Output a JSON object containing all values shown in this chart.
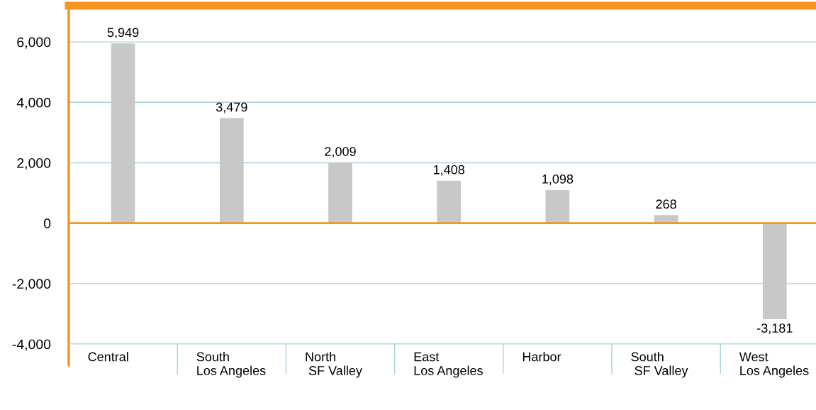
{
  "chart_data": {
    "type": "bar",
    "categories": [
      "Central",
      "South\nLos Angeles",
      "North\n SF Valley",
      "East\nLos Angeles",
      "Harbor",
      "South\n SF Valley",
      "West\nLos Angeles"
    ],
    "values": [
      5949,
      3479,
      2009,
      1408,
      1098,
      268,
      -3181
    ],
    "value_labels": [
      "5,949",
      "3,479",
      "2,009",
      "1,408",
      "1,098",
      "268",
      "-3,181"
    ],
    "color": "#c8c8c8",
    "ylim": [
      -4000,
      7200
    ],
    "yticks": [
      {
        "value": -4000,
        "label": "-4,000"
      },
      {
        "value": -2000,
        "label": "-2,000"
      },
      0,
      {
        "value": 2000,
        "label": "2,000"
      },
      {
        "value": 4000,
        "label": "4,000"
      },
      {
        "value": 6000,
        "label": "6,000"
      }
    ],
    "ref_lines": [
      {
        "axis": "y",
        "value": 0,
        "color": "#f7941d"
      }
    ],
    "grid": "y"
  }
}
